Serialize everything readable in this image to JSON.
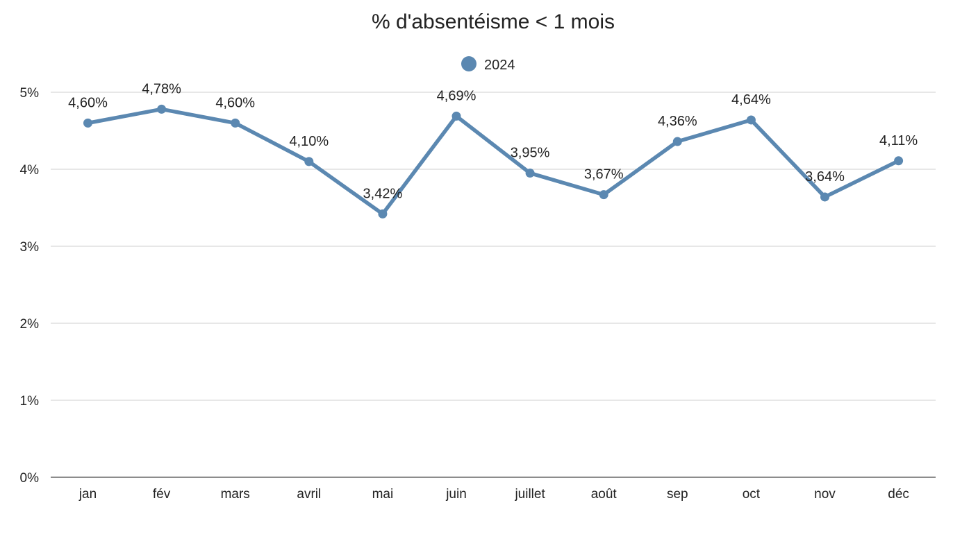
{
  "chart_data": {
    "type": "line",
    "title": "% d'absentéisme < 1 mois",
    "categories": [
      "jan",
      "fév",
      "mars",
      "avril",
      "mai",
      "juin",
      "juillet",
      "août",
      "sep",
      "oct",
      "nov",
      "déc"
    ],
    "series": [
      {
        "name": "2024",
        "color": "#5b88b1",
        "values": [
          4.6,
          4.78,
          4.6,
          4.1,
          3.42,
          4.69,
          3.95,
          3.67,
          4.36,
          4.64,
          3.64,
          4.11
        ],
        "labels": [
          "4,60%",
          "4,78%",
          "4,60%",
          "4,10%",
          "3,42%",
          "4,69%",
          "3,95%",
          "3,67%",
          "4,36%",
          "4,64%",
          "3,64%",
          "4,11%"
        ]
      }
    ],
    "y_ticks": [
      0,
      1,
      2,
      3,
      4,
      5
    ],
    "y_tick_labels": [
      "0%",
      "1%",
      "2%",
      "3%",
      "4%",
      "5%"
    ],
    "ylim": [
      0,
      5
    ],
    "xlabel": "",
    "ylabel": "",
    "grid": true,
    "legend_position": "top-center"
  }
}
